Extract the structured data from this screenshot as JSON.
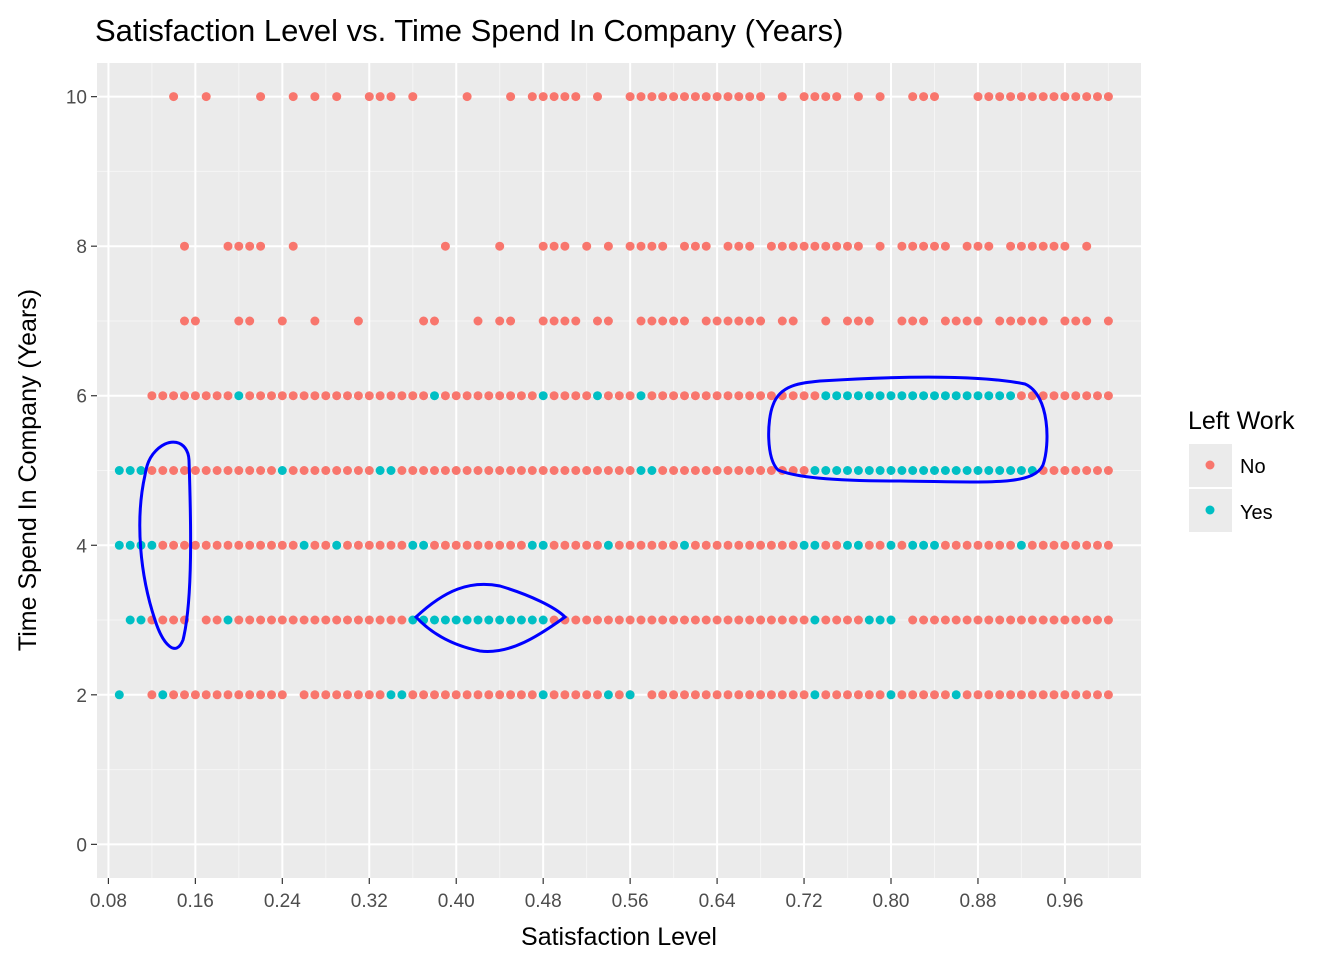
{
  "chart_data": {
    "type": "scatter",
    "title": "Satisfaction Level vs. Time Spend In Company (Years)",
    "xlabel": "Satisfaction Level",
    "ylabel": "Time Spend In Company (Years)",
    "xlim": [
      0.0695,
      1.03
    ],
    "ylim": [
      -0.45,
      10.45
    ],
    "x_ticks": [
      0.08,
      0.16,
      0.24,
      0.32,
      0.4,
      0.48,
      0.56,
      0.64,
      0.72,
      0.8,
      0.88,
      0.96
    ],
    "x_tick_labels": [
      "0.08",
      "0.16",
      "0.24",
      "0.32",
      "0.40",
      "0.48",
      "0.56",
      "0.64",
      "0.72",
      "0.80",
      "0.88",
      "0.96"
    ],
    "y_ticks": [
      0,
      2,
      4,
      6,
      8,
      10
    ],
    "y_tick_labels": [
      "0",
      "2",
      "4",
      "6",
      "8",
      "10"
    ],
    "grid": true,
    "legend": {
      "title": "Left Work",
      "position": "right"
    },
    "series": [
      {
        "name": "No",
        "color": "#F8766D",
        "points_by_y": [
          {
            "y": 10,
            "x": [
              0.14,
              0.17,
              0.22,
              0.25,
              0.27,
              0.29,
              0.32,
              0.33,
              0.34,
              0.36,
              0.41,
              0.45,
              0.47,
              0.48,
              0.49,
              0.5,
              0.51,
              0.53,
              0.56,
              0.57,
              0.58,
              0.59,
              0.6,
              0.61,
              0.62,
              0.63,
              0.64,
              0.65,
              0.66,
              0.67,
              0.68,
              0.7,
              0.72,
              0.73,
              0.74,
              0.75,
              0.77,
              0.79,
              0.82,
              0.83,
              0.84,
              0.88,
              0.89,
              0.9,
              0.91,
              0.92,
              0.93,
              0.94,
              0.95,
              0.96,
              0.97,
              0.98,
              0.99,
              1.0
            ]
          },
          {
            "y": 8,
            "x": [
              0.15,
              0.19,
              0.2,
              0.21,
              0.22,
              0.25,
              0.39,
              0.44,
              0.48,
              0.49,
              0.5,
              0.52,
              0.54,
              0.56,
              0.57,
              0.58,
              0.59,
              0.61,
              0.62,
              0.63,
              0.65,
              0.66,
              0.67,
              0.69,
              0.7,
              0.71,
              0.72,
              0.73,
              0.74,
              0.75,
              0.76,
              0.77,
              0.79,
              0.81,
              0.82,
              0.83,
              0.84,
              0.85,
              0.87,
              0.88,
              0.89,
              0.91,
              0.92,
              0.93,
              0.94,
              0.95,
              0.96,
              0.98
            ]
          },
          {
            "y": 7,
            "x": [
              0.15,
              0.16,
              0.2,
              0.21,
              0.24,
              0.27,
              0.31,
              0.37,
              0.38,
              0.42,
              0.44,
              0.45,
              0.48,
              0.49,
              0.5,
              0.51,
              0.53,
              0.54,
              0.57,
              0.58,
              0.59,
              0.6,
              0.61,
              0.63,
              0.64,
              0.65,
              0.66,
              0.67,
              0.68,
              0.7,
              0.71,
              0.74,
              0.76,
              0.77,
              0.78,
              0.81,
              0.82,
              0.83,
              0.85,
              0.86,
              0.87,
              0.88,
              0.9,
              0.91,
              0.92,
              0.93,
              0.94,
              0.96,
              0.97,
              0.98,
              1.0
            ]
          },
          {
            "y": 6,
            "x": [
              0.12,
              0.13,
              0.14,
              0.15,
              0.16,
              0.17,
              0.18,
              0.19,
              0.21,
              0.22,
              0.23,
              0.24,
              0.25,
              0.26,
              0.27,
              0.28,
              0.29,
              0.3,
              0.31,
              0.32,
              0.33,
              0.34,
              0.35,
              0.36,
              0.37,
              0.39,
              0.4,
              0.41,
              0.42,
              0.43,
              0.44,
              0.45,
              0.46,
              0.47,
              0.49,
              0.5,
              0.51,
              0.52,
              0.54,
              0.55,
              0.56,
              0.58,
              0.59,
              0.6,
              0.61,
              0.62,
              0.63,
              0.64,
              0.65,
              0.66,
              0.67,
              0.68,
              0.69,
              0.7,
              0.71,
              0.72,
              0.73,
              0.92,
              0.93,
              0.94,
              0.95,
              0.96,
              0.97,
              0.98,
              0.99,
              1.0
            ]
          },
          {
            "y": 5,
            "x": [
              0.12,
              0.13,
              0.14,
              0.15,
              0.16,
              0.17,
              0.18,
              0.19,
              0.2,
              0.21,
              0.22,
              0.23,
              0.25,
              0.26,
              0.27,
              0.28,
              0.29,
              0.3,
              0.31,
              0.32,
              0.35,
              0.36,
              0.37,
              0.38,
              0.39,
              0.4,
              0.41,
              0.42,
              0.43,
              0.44,
              0.45,
              0.46,
              0.47,
              0.48,
              0.49,
              0.5,
              0.51,
              0.52,
              0.53,
              0.54,
              0.55,
              0.56,
              0.59,
              0.6,
              0.61,
              0.62,
              0.63,
              0.64,
              0.65,
              0.66,
              0.67,
              0.68,
              0.69,
              0.7,
              0.71,
              0.72,
              0.94,
              0.95,
              0.96,
              0.97,
              0.98,
              0.99,
              1.0
            ]
          },
          {
            "y": 4,
            "x": [
              0.13,
              0.14,
              0.15,
              0.16,
              0.17,
              0.18,
              0.19,
              0.2,
              0.21,
              0.22,
              0.23,
              0.24,
              0.25,
              0.27,
              0.28,
              0.3,
              0.31,
              0.32,
              0.33,
              0.34,
              0.35,
              0.38,
              0.39,
              0.4,
              0.41,
              0.42,
              0.43,
              0.44,
              0.45,
              0.46,
              0.49,
              0.5,
              0.51,
              0.52,
              0.53,
              0.55,
              0.56,
              0.57,
              0.58,
              0.59,
              0.6,
              0.62,
              0.63,
              0.64,
              0.65,
              0.66,
              0.67,
              0.68,
              0.69,
              0.7,
              0.71,
              0.74,
              0.75,
              0.78,
              0.79,
              0.81,
              0.85,
              0.86,
              0.87,
              0.88,
              0.89,
              0.9,
              0.91,
              0.93,
              0.94,
              0.95,
              0.96,
              0.97,
              0.98,
              0.99,
              1.0
            ]
          },
          {
            "y": 3,
            "x": [
              0.12,
              0.13,
              0.14,
              0.15,
              0.17,
              0.18,
              0.2,
              0.21,
              0.22,
              0.23,
              0.24,
              0.25,
              0.26,
              0.27,
              0.28,
              0.29,
              0.3,
              0.31,
              0.32,
              0.33,
              0.34,
              0.35,
              0.49,
              0.5,
              0.51,
              0.52,
              0.53,
              0.54,
              0.55,
              0.56,
              0.57,
              0.58,
              0.59,
              0.6,
              0.61,
              0.62,
              0.63,
              0.64,
              0.65,
              0.66,
              0.67,
              0.68,
              0.69,
              0.7,
              0.71,
              0.72,
              0.74,
              0.75,
              0.76,
              0.77,
              0.82,
              0.83,
              0.84,
              0.85,
              0.86,
              0.87,
              0.88,
              0.89,
              0.9,
              0.91,
              0.92,
              0.93,
              0.94,
              0.95,
              0.96,
              0.97,
              0.98,
              0.99,
              1.0
            ]
          },
          {
            "y": 2,
            "x": [
              0.12,
              0.14,
              0.15,
              0.16,
              0.17,
              0.18,
              0.19,
              0.2,
              0.21,
              0.22,
              0.23,
              0.24,
              0.26,
              0.27,
              0.28,
              0.29,
              0.3,
              0.31,
              0.32,
              0.33,
              0.36,
              0.37,
              0.38,
              0.39,
              0.4,
              0.41,
              0.42,
              0.43,
              0.44,
              0.45,
              0.46,
              0.47,
              0.49,
              0.5,
              0.51,
              0.52,
              0.53,
              0.55,
              0.56,
              0.58,
              0.59,
              0.6,
              0.61,
              0.62,
              0.63,
              0.64,
              0.65,
              0.66,
              0.67,
              0.68,
              0.69,
              0.7,
              0.71,
              0.72,
              0.74,
              0.75,
              0.76,
              0.77,
              0.78,
              0.79,
              0.81,
              0.82,
              0.83,
              0.84,
              0.85,
              0.87,
              0.88,
              0.89,
              0.9,
              0.91,
              0.92,
              0.93,
              0.94,
              0.95,
              0.96,
              0.97,
              0.98,
              0.99,
              1.0
            ]
          }
        ]
      },
      {
        "name": "Yes",
        "color": "#00BFC4",
        "points_by_y": [
          {
            "y": 6,
            "x": [
              0.2,
              0.38,
              0.48,
              0.53,
              0.57,
              0.74,
              0.75,
              0.76,
              0.77,
              0.78,
              0.79,
              0.8,
              0.81,
              0.82,
              0.83,
              0.84,
              0.85,
              0.86,
              0.87,
              0.88,
              0.89,
              0.9,
              0.91
            ]
          },
          {
            "y": 5,
            "x": [
              0.09,
              0.1,
              0.11,
              0.24,
              0.33,
              0.34,
              0.57,
              0.58,
              0.73,
              0.74,
              0.75,
              0.76,
              0.77,
              0.78,
              0.79,
              0.8,
              0.81,
              0.82,
              0.83,
              0.84,
              0.85,
              0.86,
              0.87,
              0.88,
              0.89,
              0.9,
              0.91,
              0.92,
              0.93
            ]
          },
          {
            "y": 4,
            "x": [
              0.09,
              0.1,
              0.11,
              0.12,
              0.26,
              0.29,
              0.36,
              0.37,
              0.47,
              0.48,
              0.54,
              0.61,
              0.72,
              0.73,
              0.76,
              0.77,
              0.8,
              0.82,
              0.83,
              0.84,
              0.92
            ]
          },
          {
            "y": 3,
            "x": [
              0.1,
              0.11,
              0.19,
              0.36,
              0.37,
              0.38,
              0.39,
              0.4,
              0.41,
              0.42,
              0.43,
              0.44,
              0.45,
              0.46,
              0.47,
              0.48,
              0.73,
              0.78,
              0.79,
              0.8
            ]
          },
          {
            "y": 2,
            "x": [
              0.09,
              0.13,
              0.34,
              0.35,
              0.48,
              0.54,
              0.56,
              0.73,
              0.8,
              0.86
            ]
          }
        ]
      }
    ],
    "annotations": [
      {
        "type": "hand-drawn-outline",
        "color": "#0000FF",
        "region": "Yes points at x≈0.09–0.12, y 3–5"
      },
      {
        "type": "hand-drawn-outline",
        "color": "#0000FF",
        "region": "Yes points at x≈0.36–0.48, y 3"
      },
      {
        "type": "hand-drawn-outline",
        "color": "#0000FF",
        "region": "Yes points at x≈0.72–0.93, y 5–6"
      }
    ]
  }
}
